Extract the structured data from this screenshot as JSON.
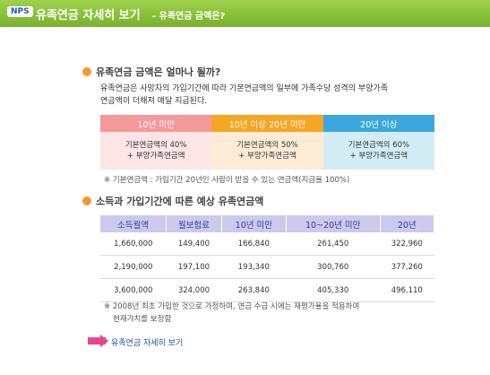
{
  "header": {
    "logo": "NPS",
    "title": "유족연금 자세히 보기",
    "subtitle": "- 유족연금 금액은?"
  },
  "section1": {
    "heading": "유족연금 금액은 얼마나 될까?",
    "paragraph": [
      "유족연금은 사망자의 가입기간에 따라 기본연금액의 일부에 가족수당 성격의 부양가족",
      "연금액이 더해져 매달 지급된다."
    ],
    "table": {
      "headers": [
        "10년 미만",
        "10년 이상 20년 미만",
        "20년 이상"
      ],
      "cells": [
        [
          "기본연금액의 40%",
          "+ 부양가족연금액"
        ],
        [
          "기본연금액의 50%",
          "+ 부양가족연금액"
        ],
        [
          "기본연금액의 60%",
          "+ 부양가족연금액"
        ]
      ]
    },
    "note": "※ 기본연금액 : 가입기간 20년인 사람이 받을 수 있는 연금액(지급율 100%)"
  },
  "section2": {
    "heading": "소득과 가입기간에 따른 예상 유족연금액",
    "table": {
      "headers": [
        "소득월액",
        "월보험료",
        "10년 미만",
        "10~20년 미만",
        "20년"
      ],
      "rows": [
        [
          "1,660,000",
          "149,400",
          "166,840",
          "261,450",
          "322,960"
        ],
        [
          "2,190,000",
          "197,100",
          "193,340",
          "300,760",
          "377,260"
        ],
        [
          "3,600,000",
          "324,000",
          "263,840",
          "405,330",
          "496,110"
        ]
      ]
    },
    "note": [
      "※ 2008년 최초 가입한 것으로 가정하며, 연금 수급 시에는 재평가율을 적용하여",
      "현재가치를 보정함"
    ]
  },
  "link": "유족연금 자세히 보기"
}
